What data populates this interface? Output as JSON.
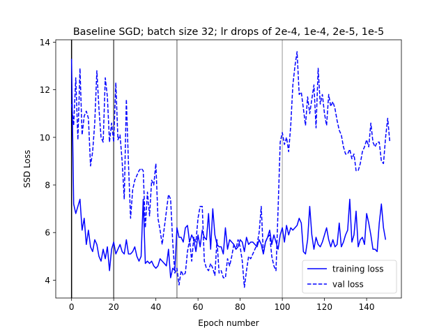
{
  "chart_data": {
    "type": "line",
    "title": "Baseline SGD; batch size 32; lr drops of 2e-4, 1e-4, 2e-5, 1e-5",
    "xlabel": "Epoch number",
    "ylabel": "SSD Loss",
    "xlim": [
      -7.5,
      156.5
    ],
    "ylim": [
      3.25,
      14.1
    ],
    "xticks": [
      0,
      20,
      40,
      60,
      80,
      100,
      120,
      140
    ],
    "yticks": [
      4,
      6,
      8,
      10,
      12,
      14
    ],
    "grid": false,
    "legend": "lower-right",
    "vlines": [
      {
        "x": 0,
        "color": "#000000"
      },
      {
        "x": 20,
        "color": "#555555"
      },
      {
        "x": 50,
        "color": "#8c8c8c"
      },
      {
        "x": 100,
        "color": "#b9b9b9"
      }
    ],
    "series": [
      {
        "name": "training loss",
        "color": "#0000ff",
        "style": "solid",
        "values": [
          13.3,
          7.2,
          6.8,
          7.1,
          7.4,
          6.1,
          6.6,
          5.5,
          6.1,
          5.4,
          5.2,
          5.7,
          5.5,
          5.0,
          4.8,
          5.3,
          4.9,
          5.4,
          4.4,
          5.3,
          5.6,
          5.1,
          5.3,
          5.5,
          5.2,
          5.1,
          5.7,
          5.1,
          5.1,
          5.2,
          5.4,
          5.0,
          4.8,
          5.0,
          7.4,
          4.7,
          4.8,
          4.7,
          4.8,
          4.6,
          4.5,
          4.6,
          4.9,
          4.8,
          4.7,
          4.6,
          5.3,
          4.1,
          4.5,
          4.4,
          6.2,
          5.8,
          5.8,
          5.6,
          6.2,
          6.3,
          5.6,
          5.9,
          5.7,
          5.2,
          5.9,
          5.4,
          6.1,
          5.8,
          5.7,
          6.8,
          5.3,
          7.0,
          5.9,
          5.5,
          5.4,
          5.4,
          5.1,
          6.2,
          5.3,
          5.7,
          5.6,
          5.5,
          5.3,
          5.4,
          5.7,
          5.6,
          5.2,
          5.8,
          5.5,
          5.6,
          5.6,
          5.5,
          5.4,
          5.7,
          5.5,
          5.1,
          5.6,
          5.8,
          6.1,
          5.5,
          5.9,
          5.6,
          5.3,
          5.9,
          6.2,
          5.6,
          6.3,
          5.9,
          6.2,
          6.1,
          6.2,
          6.3,
          6.6,
          6.4,
          5.2,
          5.1,
          5.7,
          7.1,
          5.9,
          5.3,
          5.8,
          5.5,
          5.4,
          5.6,
          5.9,
          6.2,
          5.7,
          5.4,
          5.7,
          5.4,
          5.5,
          6.4,
          5.4,
          5.6,
          5.9,
          6.1,
          7.4,
          5.6,
          5.9,
          6.9,
          5.4,
          5.7,
          5.8,
          5.5,
          6.8,
          6.4,
          5.9,
          5.3,
          5.3,
          5.2,
          6.4,
          7.2,
          6.2,
          5.7
        ]
      },
      {
        "name": "val loss",
        "color": "#0000ff",
        "style": "dashed",
        "values": [
          11.4,
          10.5,
          12.5,
          9.9,
          12.9,
          10.1,
          10.9,
          11.1,
          10.8,
          8.8,
          9.4,
          10.6,
          12.8,
          11.2,
          10.0,
          9.8,
          12.5,
          11.7,
          9.8,
          10.6,
          9.8,
          12.3,
          9.9,
          10.1,
          9.0,
          7.4,
          11.6,
          8.9,
          6.6,
          7.8,
          8.2,
          8.4,
          8.6,
          8.7,
          8.6,
          6.2,
          7.7,
          6.7,
          8.2,
          8.0,
          8.9,
          6.6,
          6.1,
          5.5,
          6.2,
          6.9,
          7.6,
          7.4,
          5.6,
          4.3,
          4.5,
          3.8,
          4.4,
          4.2,
          4.3,
          5.2,
          5.7,
          4.8,
          5.8,
          5.6,
          6.6,
          7.1,
          7.1,
          4.8,
          4.5,
          4.4,
          4.7,
          4.5,
          4.2,
          5.7,
          4.3,
          4.4,
          4.1,
          4.1,
          4.9,
          4.6,
          5.0,
          5.5,
          5.3,
          5.7,
          5.4,
          4.8,
          3.7,
          4.4,
          5.0,
          4.9,
          5.1,
          5.3,
          5.5,
          6.0,
          7.1,
          5.1,
          5.6,
          5.8,
          5.9,
          5.0,
          4.6,
          4.4,
          7.0,
          9.8,
          10.2,
          9.7,
          10.0,
          9.4,
          10.5,
          12.2,
          13.0,
          13.6,
          11.8,
          11.9,
          11.2,
          10.5,
          11.7,
          11.0,
          11.6,
          12.2,
          10.4,
          12.9,
          11.4,
          11.8,
          11.0,
          10.5,
          11.8,
          11.3,
          11.5,
          11.2,
          10.7,
          10.3,
          10.1,
          9.6,
          9.3,
          9.3,
          9.5,
          9.1,
          9.3,
          8.6,
          8.6,
          8.9,
          9.4,
          9.6,
          9.9,
          9.6,
          10.6,
          9.8,
          9.6,
          9.8,
          9.8,
          9.0,
          8.9,
          10.0,
          10.8,
          9.8
        ]
      }
    ]
  }
}
